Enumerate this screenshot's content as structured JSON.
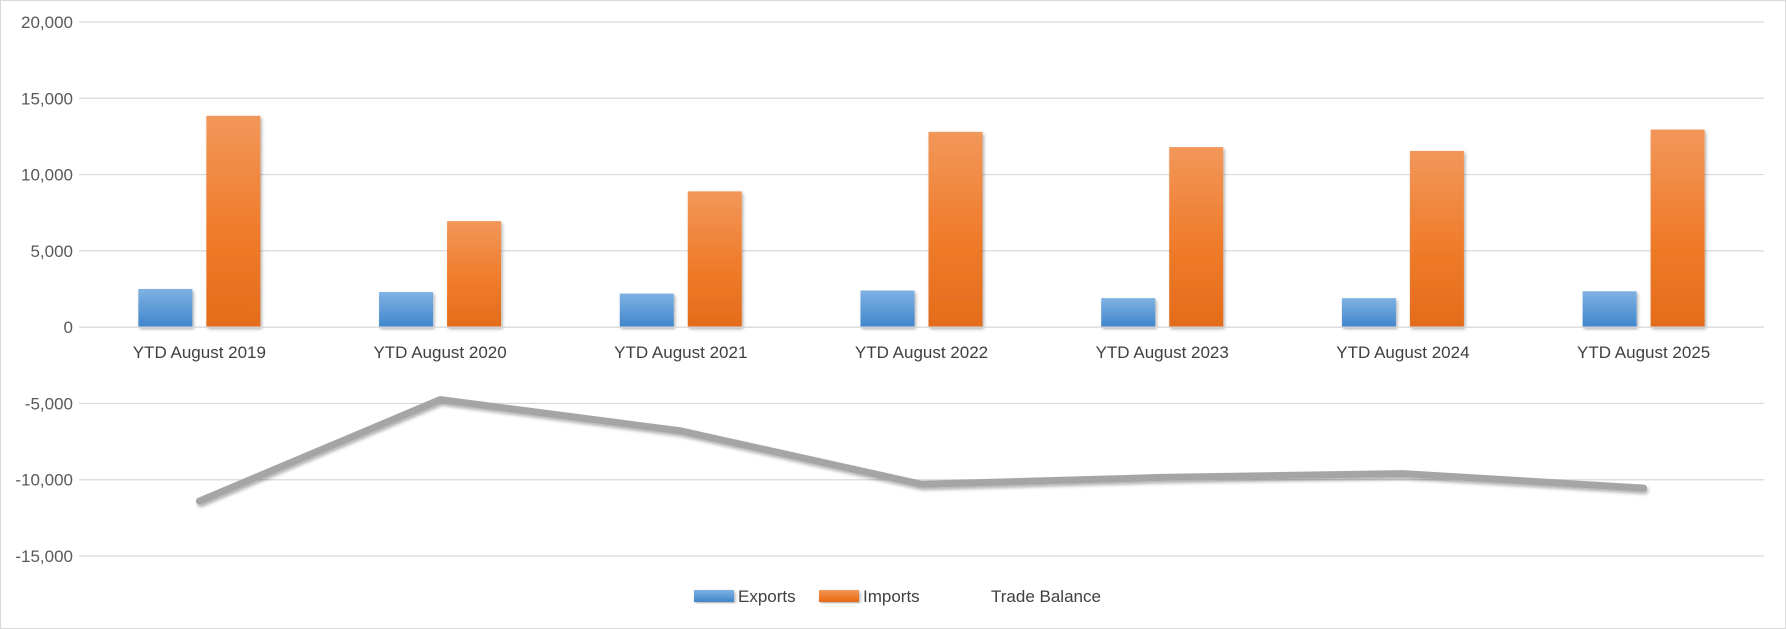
{
  "chart_data": {
    "type": "bar",
    "categories": [
      "YTD August 2019",
      "YTD August 2020",
      "YTD August 2021",
      "YTD August 2022",
      "YTD August 2023",
      "YTD August 2024",
      "YTD August 2025"
    ],
    "series": [
      {
        "name": "Exports",
        "type": "bar",
        "color": "#5b9bd5",
        "values": [
          2500,
          2300,
          2200,
          2400,
          1900,
          1900,
          2350
        ]
      },
      {
        "name": "Imports",
        "type": "bar",
        "color": "#ed7d31",
        "values": [
          13850,
          6950,
          8900,
          12800,
          11800,
          11550,
          12950
        ]
      },
      {
        "name": "Trade Balance",
        "type": "line",
        "color": "#a5a5a5",
        "values": [
          -11400,
          -4750,
          -6800,
          -10300,
          -9850,
          -9600,
          -10550
        ]
      }
    ],
    "yticks": [
      "20,000",
      "15,000",
      "10,000",
      "5,000",
      "0",
      "-5,000",
      "-10,000",
      "-15,000"
    ],
    "ylim": [
      -15000,
      20000
    ],
    "grid": true,
    "legend_position": "bottom"
  }
}
